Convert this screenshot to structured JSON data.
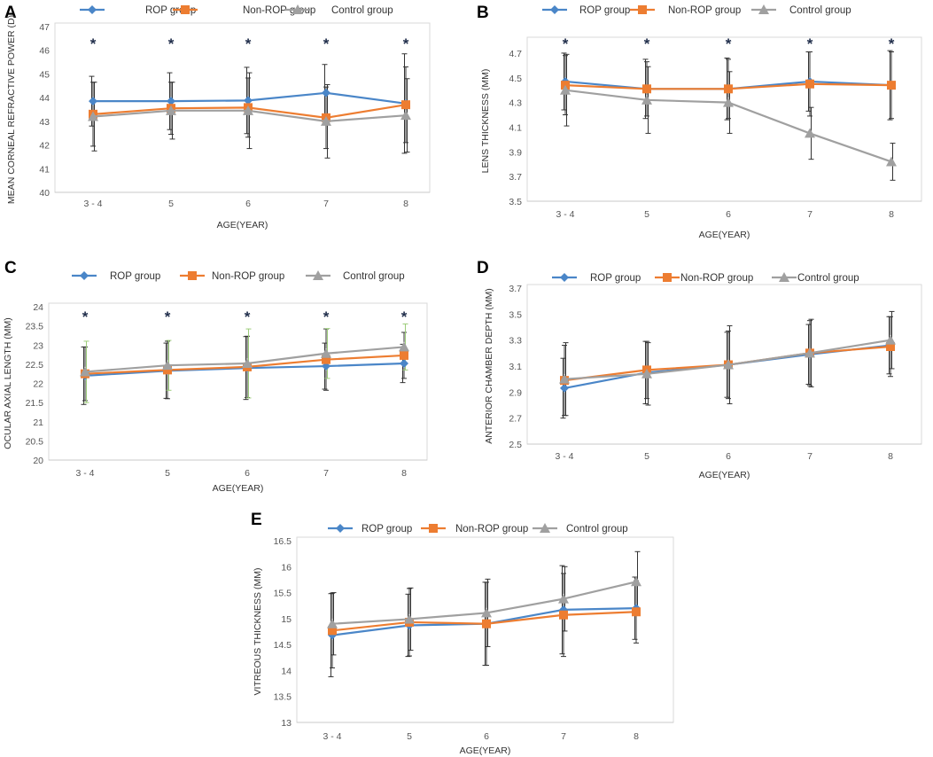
{
  "chart_data": [
    {
      "panel": "A",
      "type": "line",
      "title": "",
      "categories": [
        "3 - 4",
        "5",
        "6",
        "7",
        "8"
      ],
      "xlabel": "AGE(YEAR)",
      "ylabel": "MEAN CORNEAL REFRACTIVE POWER (D)",
      "ylim": [
        40,
        47
      ],
      "yticks": [
        "40",
        "41",
        "42",
        "43",
        "44",
        "45",
        "46",
        "47"
      ],
      "grid": false,
      "legend": "top",
      "significance": [
        "*",
        "*",
        "*",
        "*",
        "*"
      ],
      "series": [
        {
          "name": "ROP group",
          "color": "#4a86c8",
          "marker": "diamond",
          "values": [
            43.85,
            43.85,
            43.88,
            44.2,
            43.75
          ],
          "error": [
            1.05,
            1.2,
            1.4,
            1.2,
            2.1
          ],
          "error_color": "#333333"
        },
        {
          "name": "Non-ROP group",
          "color": "#ed7d31",
          "marker": "square",
          "values": [
            43.3,
            43.55,
            43.58,
            43.15,
            43.7
          ],
          "error": [
            1.35,
            1.1,
            1.25,
            1.3,
            1.6
          ],
          "error_color": "#333333"
        },
        {
          "name": "Control group",
          "color": "#a0a0a0",
          "marker": "triangle",
          "values": [
            43.2,
            43.45,
            43.45,
            43.0,
            43.25
          ],
          "error": [
            1.45,
            1.2,
            1.6,
            1.55,
            1.55
          ],
          "error_color": "#333333"
        }
      ]
    },
    {
      "panel": "B",
      "type": "line",
      "title": "",
      "categories": [
        "3 - 4",
        "5",
        "6",
        "7",
        "8"
      ],
      "xlabel": "AGE(YEAR)",
      "ylabel": "LENS THICKNESS (MM)",
      "ylim": [
        3.5,
        4.8
      ],
      "yticks": [
        "3.5",
        "3.7",
        "3.9",
        "4.1",
        "4.3",
        "4.5",
        "4.7"
      ],
      "grid": false,
      "legend": "top",
      "significance": [
        "*",
        "*",
        "*",
        "*",
        "*"
      ],
      "series": [
        {
          "name": "ROP group",
          "color": "#4a86c8",
          "marker": "diamond",
          "values": [
            4.47,
            4.41,
            4.41,
            4.47,
            4.44
          ],
          "error": [
            0.23,
            0.24,
            0.25,
            0.24,
            0.28
          ],
          "error_color": "#333333"
        },
        {
          "name": "Non-ROP group",
          "color": "#ed7d31",
          "marker": "square",
          "values": [
            4.44,
            4.41,
            4.41,
            4.45,
            4.44
          ],
          "error": [
            0.24,
            0.22,
            0.24,
            0.26,
            0.27
          ],
          "error_color": "#333333"
        },
        {
          "name": "Control group",
          "color": "#a0a0a0",
          "marker": "triangle",
          "values": [
            4.4,
            4.32,
            4.3,
            4.05,
            3.82
          ],
          "error": [
            0.29,
            0.27,
            0.25,
            0.21,
            0.15
          ],
          "error_color": "#333333"
        }
      ]
    },
    {
      "panel": "C",
      "type": "line",
      "title": "",
      "categories": [
        "3 - 4",
        "5",
        "6",
        "7",
        "8"
      ],
      "xlabel": "AGE(YEAR)",
      "ylabel": "OCULAR AXIAL LENGTH (MM)",
      "ylim": [
        20,
        24
      ],
      "yticks": [
        "20",
        "20.5",
        "21",
        "21.5",
        "22",
        "22.5",
        "23",
        "23.5",
        "24"
      ],
      "grid": false,
      "legend": "top",
      "significance": [
        "*",
        "*",
        "*",
        "*",
        "*"
      ],
      "series": [
        {
          "name": "ROP group",
          "color": "#4a86c8",
          "marker": "diamond",
          "values": [
            22.2,
            22.33,
            22.4,
            22.45,
            22.52
          ],
          "error": [
            0.75,
            0.72,
            0.82,
            0.6,
            0.5
          ],
          "error_color": "#333333"
        },
        {
          "name": "Non-ROP group",
          "color": "#ed7d31",
          "marker": "square",
          "values": [
            22.25,
            22.35,
            22.43,
            22.62,
            22.73
          ],
          "error": [
            0.7,
            0.75,
            0.8,
            0.8,
            0.6
          ],
          "error_color": "#333333"
        },
        {
          "name": "Control group",
          "color": "#a0a0a0",
          "marker": "triangle",
          "values": [
            22.3,
            22.47,
            22.52,
            22.78,
            22.95
          ],
          "error": [
            0.8,
            0.65,
            0.9,
            0.65,
            0.6
          ],
          "error_color": "#9ccc7a"
        }
      ]
    },
    {
      "panel": "D",
      "type": "line",
      "title": "",
      "categories": [
        "3 - 4",
        "5",
        "6",
        "7",
        "8"
      ],
      "xlabel": "AGE(YEAR)",
      "ylabel": "ANTERIOR CHAMBER DEPTH (MM)",
      "ylim": [
        2.5,
        3.7
      ],
      "yticks": [
        "2.5",
        "2.7",
        "2.9",
        "3.1",
        "3.3",
        "3.5",
        "3.7"
      ],
      "grid": false,
      "legend": "top",
      "significance": [],
      "series": [
        {
          "name": "ROP group",
          "color": "#4a86c8",
          "marker": "diamond",
          "values": [
            2.93,
            3.05,
            3.11,
            3.19,
            3.26
          ],
          "error": [
            0.23,
            0.24,
            0.25,
            0.23,
            0.22
          ],
          "error_color": "#333333"
        },
        {
          "name": "Non-ROP group",
          "color": "#ed7d31",
          "marker": "square",
          "values": [
            2.99,
            3.07,
            3.11,
            3.2,
            3.25
          ],
          "error": [
            0.27,
            0.22,
            0.26,
            0.25,
            0.23
          ],
          "error_color": "#333333"
        },
        {
          "name": "Control group",
          "color": "#a0a0a0",
          "marker": "triangle",
          "values": [
            3.0,
            3.04,
            3.11,
            3.2,
            3.3
          ],
          "error": [
            0.28,
            0.24,
            0.3,
            0.26,
            0.22
          ],
          "error_color": "#333333"
        }
      ]
    },
    {
      "panel": "E",
      "type": "line",
      "title": "",
      "categories": [
        "3 - 4",
        "5",
        "6",
        "7",
        "8"
      ],
      "xlabel": "AGE(YEAR)",
      "ylabel": "VITREOUS THICKNESS (MM)",
      "ylim": [
        13,
        16.5
      ],
      "yticks": [
        "13",
        "13.5",
        "14",
        "14.5",
        "15",
        "15.5",
        "16",
        "16.5"
      ],
      "grid": false,
      "legend": "top",
      "significance": [],
      "series": [
        {
          "name": "ROP group",
          "color": "#4a86c8",
          "marker": "diamond",
          "values": [
            14.68,
            14.87,
            14.9,
            15.17,
            15.2
          ],
          "error": [
            0.8,
            0.6,
            0.8,
            0.85,
            0.6
          ],
          "error_color": "#333333"
        },
        {
          "name": "Non-ROP group",
          "color": "#ed7d31",
          "marker": "square",
          "values": [
            14.77,
            14.93,
            14.9,
            15.07,
            15.13
          ],
          "error": [
            0.72,
            0.65,
            0.8,
            0.8,
            0.6
          ],
          "error_color": "#333333"
        },
        {
          "name": "Control group",
          "color": "#a0a0a0",
          "marker": "triangle",
          "values": [
            14.9,
            14.99,
            15.11,
            15.38,
            15.71
          ],
          "error": [
            0.6,
            0.6,
            0.65,
            0.62,
            0.58
          ],
          "error_color": "#333333"
        }
      ]
    }
  ]
}
